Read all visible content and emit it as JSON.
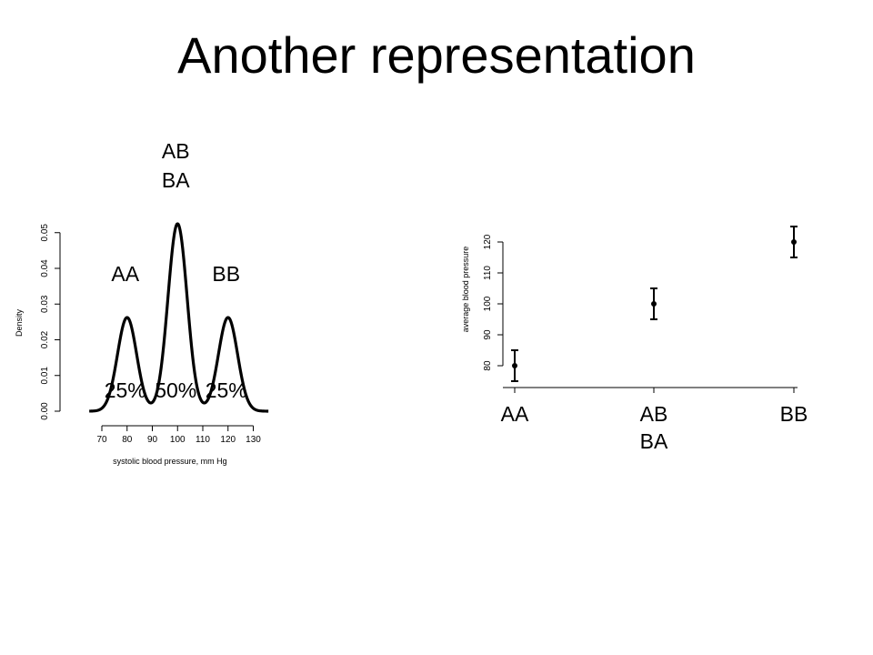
{
  "slide": {
    "title": "Another representation"
  },
  "chart_data": [
    {
      "type": "line",
      "title": "",
      "xlabel": "systolic blood pressure, mm Hg",
      "ylabel": "Density",
      "xlim": [
        65,
        136
      ],
      "ylim": [
        0,
        0.055
      ],
      "xticks": [
        70,
        80,
        90,
        100,
        110,
        120,
        130
      ],
      "yticks": [
        "0.00",
        "0.01",
        "0.02",
        "0.03",
        "0.04",
        "0.05"
      ],
      "components": [
        {
          "mean": 80,
          "sd": 3.8,
          "weight": 0.25
        },
        {
          "mean": 100,
          "sd": 3.8,
          "weight": 0.5
        },
        {
          "mean": 120,
          "sd": 3.8,
          "weight": 0.25
        }
      ],
      "peak_labels": [
        {
          "x": 80,
          "lines": [
            "AA"
          ],
          "percent": "25%"
        },
        {
          "x": 100,
          "lines": [
            "AB",
            "BA"
          ],
          "percent": "50%"
        },
        {
          "x": 120,
          "lines": [
            "BB"
          ],
          "percent": "25%"
        }
      ]
    },
    {
      "type": "scatter",
      "title": "",
      "xlabel": "",
      "ylabel": "average blood pressure",
      "ylim": [
        77,
        124
      ],
      "yticks": [
        80,
        90,
        100,
        110,
        120
      ],
      "categories": [
        [
          "AA"
        ],
        [
          "AB",
          "BA"
        ],
        [
          "BB"
        ]
      ],
      "values": [
        80,
        100,
        120
      ],
      "error_low": [
        75,
        95,
        115
      ],
      "error_high": [
        85,
        105,
        125
      ]
    }
  ]
}
